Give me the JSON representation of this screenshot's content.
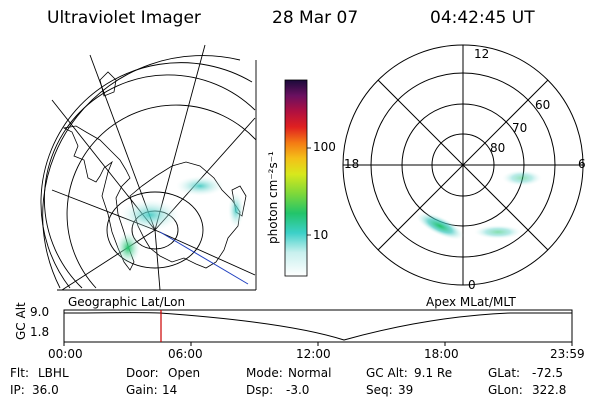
{
  "header": {
    "instrument": "Ultraviolet Imager",
    "date": "28 Mar 07",
    "time": "04:42:45 UT"
  },
  "colorbar": {
    "unit_label": "photon cm⁻²s⁻¹",
    "tick_labels": [
      "100",
      "10"
    ]
  },
  "polar_plot": {
    "mlt_labels": {
      "top": "12",
      "left": "18",
      "right": "6",
      "bottom": "0"
    },
    "mlat_labels": [
      "60",
      "70",
      "80"
    ]
  },
  "panel_labels": {
    "left": "Geographic Lat/Lon",
    "right": "Apex MLat/MLT"
  },
  "altitude_strip": {
    "ylabel": "GC Alt",
    "y_ticks": [
      "9.0",
      "1.8"
    ],
    "x_ticks": [
      "00:00",
      "06:00",
      "12:00",
      "18:00",
      "23:59"
    ],
    "marker_time": "04:42:45"
  },
  "status": {
    "row1": [
      {
        "label": "Flt:",
        "value": "LBHL"
      },
      {
        "label": "Door:",
        "value": "Open"
      },
      {
        "label": "Mode:",
        "value": "Normal"
      },
      {
        "label": "GC Alt:",
        "value": "9.1 Re"
      },
      {
        "label": "GLat:",
        "value": "-72.5"
      }
    ],
    "row2": [
      {
        "label": "IP:",
        "value": "36.0"
      },
      {
        "label": "Gain:",
        "value": "14"
      },
      {
        "label": "Dsp:",
        "value": "-3.0"
      },
      {
        "label": "Seq:",
        "value": "39"
      },
      {
        "label": "GLon:",
        "value": "322.8"
      }
    ]
  },
  "colors": {
    "marker": "#cc0000",
    "aurora": "#3cc8c0",
    "aurora_bright": "#22c46a",
    "terminator": "#1f3fbf"
  }
}
